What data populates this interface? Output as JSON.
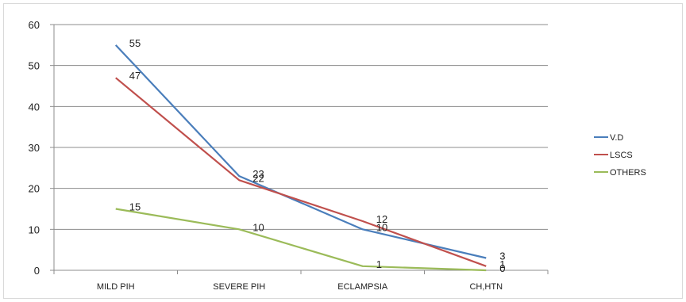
{
  "chart_data": {
    "type": "line",
    "categories": [
      "MILD PIH",
      "SEVERE PIH",
      "ECLAMPSIA",
      "CH,HTN"
    ],
    "ylim": [
      0,
      60
    ],
    "yticks": [
      0,
      10,
      20,
      30,
      40,
      50,
      60
    ],
    "grid": true,
    "legend_position": "right",
    "series": [
      {
        "name": "V.D",
        "values": [
          55,
          23,
          10,
          3
        ],
        "color": "#4a7ebb"
      },
      {
        "name": "LSCS",
        "values": [
          47,
          22,
          12,
          1
        ],
        "color": "#c0504d"
      },
      {
        "name": "OTHERS",
        "values": [
          15,
          10,
          1,
          0
        ],
        "color": "#9bbb59"
      }
    ]
  }
}
